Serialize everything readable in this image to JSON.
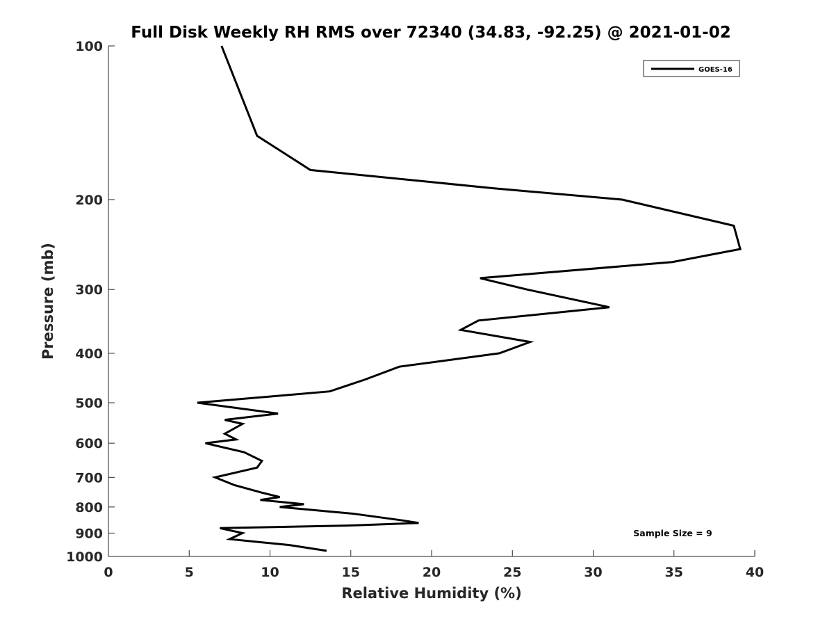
{
  "chart_data": {
    "type": "line",
    "title": "Full Disk Weekly RH RMS over 72340 (34.83, -92.25) @ 2021-01-02",
    "xlabel": "Relative Humidity (%)",
    "ylabel": "Pressure (mb)",
    "xlim": [
      0,
      40
    ],
    "ylim": [
      100,
      1000
    ],
    "y_scale": "log",
    "y_reversed": true,
    "x_ticks": [
      0,
      5,
      10,
      15,
      20,
      25,
      30,
      35,
      40
    ],
    "y_ticks": [
      100,
      200,
      300,
      400,
      500,
      600,
      700,
      800,
      900,
      1000
    ],
    "grid": false,
    "legend_position": "top-right",
    "series": [
      {
        "name": "GOES-16",
        "color": "#000000",
        "points": [
          [
            7.0,
            100
          ],
          [
            9.2,
            150
          ],
          [
            12.5,
            175
          ],
          [
            23.8,
            190
          ],
          [
            31.8,
            200
          ],
          [
            38.7,
            225
          ],
          [
            39.1,
            250
          ],
          [
            34.9,
            265
          ],
          [
            23.0,
            285
          ],
          [
            25.9,
            300
          ],
          [
            31.0,
            325
          ],
          [
            22.9,
            345
          ],
          [
            21.8,
            360
          ],
          [
            26.1,
            380
          ],
          [
            24.2,
            400
          ],
          [
            18.0,
            425
          ],
          [
            15.9,
            450
          ],
          [
            13.7,
            475
          ],
          [
            5.5,
            500
          ],
          [
            10.5,
            525
          ],
          [
            7.2,
            540
          ],
          [
            8.3,
            550
          ],
          [
            7.2,
            575
          ],
          [
            7.9,
            590
          ],
          [
            6.0,
            600
          ],
          [
            8.4,
            625
          ],
          [
            9.5,
            650
          ],
          [
            9.2,
            670
          ],
          [
            6.6,
            700
          ],
          [
            7.8,
            725
          ],
          [
            9.5,
            750
          ],
          [
            10.6,
            765
          ],
          [
            9.4,
            775
          ],
          [
            12.1,
            790
          ],
          [
            10.6,
            800
          ],
          [
            15.2,
            825
          ],
          [
            18.2,
            850
          ],
          [
            19.2,
            860
          ],
          [
            14.8,
            870
          ],
          [
            6.9,
            880
          ],
          [
            8.3,
            900
          ],
          [
            7.5,
            925
          ],
          [
            11.2,
            950
          ],
          [
            13.5,
            975
          ]
        ]
      }
    ],
    "annotations": [
      {
        "text": "Sample Size = 9",
        "position": "bottom-right"
      }
    ]
  }
}
